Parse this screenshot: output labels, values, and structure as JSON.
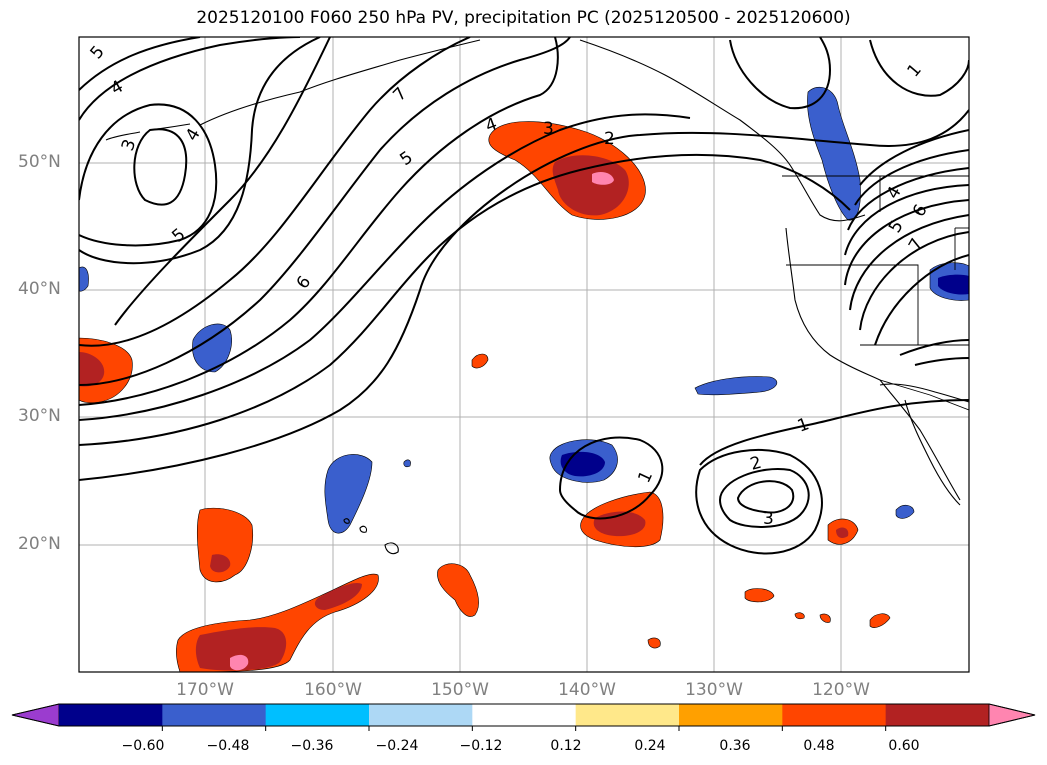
{
  "title": "2025120100 F060 250 hPa PV, precipitation PC (2025120500 - 2025120600)",
  "latitude_labels": [
    "50°N",
    "40°N",
    "30°N",
    "20°N"
  ],
  "longitude_labels": [
    "170°W",
    "160°W",
    "150°W",
    "140°W",
    "130°W",
    "120°W"
  ],
  "colorbar": {
    "tick_labels": [
      "−0.60",
      "−0.48",
      "−0.36",
      "−0.24",
      "−0.12",
      "0.12",
      "0.24",
      "0.36",
      "0.48",
      "0.60"
    ],
    "colors": [
      "#9b3ccf",
      "#00008b",
      "#3a5fcd",
      "#00bfff",
      "#add8f5",
      "#ffffff",
      "#ffe88a",
      "#ffa000",
      "#ff4500",
      "#b22222",
      "#ff85b0"
    ]
  },
  "contour_labels": [
    "5",
    "4",
    "3",
    "4",
    "7",
    "5",
    "6",
    "5",
    "4",
    "3",
    "2",
    "1",
    "4",
    "5",
    "6",
    "7",
    "1",
    "2",
    "3",
    "1"
  ],
  "colors": {
    "grid": "#b0b0b0",
    "contour": "#000000",
    "coast": "#000000"
  }
}
